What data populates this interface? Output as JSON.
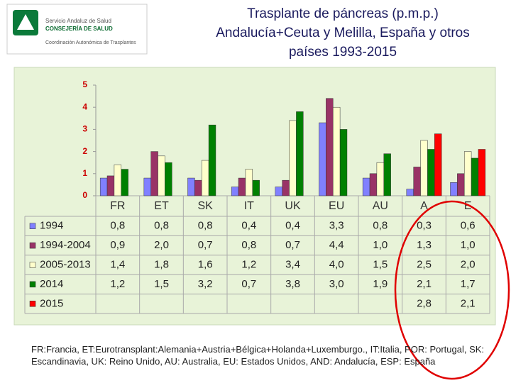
{
  "header": {
    "logo": [
      "Servicio Andaluz de Salud",
      "CONSEJERÍA DE SALUD",
      "Coordinación Autonómica de Trasplantes"
    ]
  },
  "chart_data": {
    "type": "bar",
    "title": [
      "Trasplante de páncreas (p.m.p.)",
      "Andalucía+Ceuta y Melilla, España y otros",
      "países  1993-2015"
    ],
    "categories": [
      "FR",
      "ET",
      "SK",
      "IT",
      "UK",
      "EU",
      "AU",
      "A",
      "E"
    ],
    "series": [
      {
        "name": "1994",
        "color": "#8080ff",
        "values": [
          0.8,
          0.8,
          0.8,
          0.4,
          0.4,
          3.3,
          0.8,
          0.3,
          0.6
        ],
        "value_labels": [
          "0,8",
          "0,8",
          "0,8",
          "0,4",
          "0,4",
          "3,3",
          "0,8",
          "0,3",
          "0,6"
        ]
      },
      {
        "name": "1994-2004",
        "color": "#993366",
        "values": [
          0.9,
          2.0,
          0.7,
          0.8,
          0.7,
          4.4,
          1.0,
          1.3,
          1.0
        ],
        "value_labels": [
          "0,9",
          "2,0",
          "0,7",
          "0,8",
          "0,7",
          "4,4",
          "1,0",
          "1,3",
          "1,0"
        ]
      },
      {
        "name": "2005-2013",
        "color": "#ffffcc",
        "values": [
          1.4,
          1.8,
          1.6,
          1.2,
          3.4,
          4.0,
          1.5,
          2.5,
          2.0
        ],
        "value_labels": [
          "1,4",
          "1,8",
          "1,6",
          "1,2",
          "3,4",
          "4,0",
          "1,5",
          "2,5",
          "2,0"
        ]
      },
      {
        "name": "2014",
        "color": "#008000",
        "values": [
          1.2,
          1.5,
          3.2,
          0.7,
          3.8,
          3.0,
          1.9,
          2.1,
          1.7
        ],
        "value_labels": [
          "1,2",
          "1,5",
          "3,2",
          "0,7",
          "3,8",
          "3,0",
          "1,9",
          "2,1",
          "1,7"
        ]
      },
      {
        "name": "2015",
        "color": "#ff0000",
        "values": [
          null,
          null,
          null,
          null,
          null,
          null,
          null,
          2.8,
          2.1
        ],
        "value_labels": [
          null,
          null,
          null,
          null,
          null,
          null,
          null,
          "2,8",
          "2,1"
        ]
      }
    ],
    "ylim": [
      0,
      5
    ],
    "yticks": [
      0,
      1,
      2,
      3,
      4,
      5
    ],
    "footnote": "FR:Francia, ET:Eurotransplant:Alemania+Austria+Bélgica+Holanda+Luxemburgo., IT:Italia, POR: Portugal, SK: Escandinavia, UK: Reino Unido, AU: Australia, EU: Estados Unidos, AND: Andalucía, ESP: España"
  }
}
